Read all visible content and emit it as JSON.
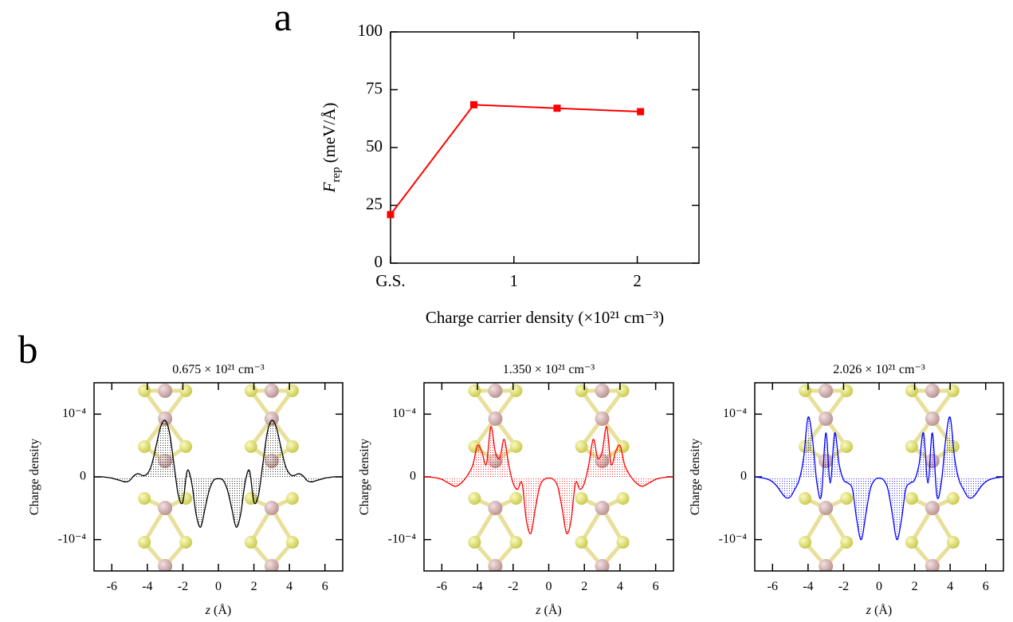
{
  "chart_data": [
    {
      "type": "line",
      "label": "a",
      "x": [
        0,
        0.675,
        1.35,
        2.026
      ],
      "values": [
        21,
        68.5,
        67,
        65.5
      ],
      "color": "#ff0000",
      "xlim": [
        0,
        2.5
      ],
      "xticks": [
        {
          "value": 0,
          "label": "G.S."
        },
        1,
        2
      ],
      "ylim": [
        0,
        100
      ],
      "yticks": [
        0,
        25,
        50,
        75,
        100
      ],
      "y_label": [
        "F",
        "rep",
        "(meV/Å)"
      ],
      "x_label": "Charge carrier density (×10²¹ cm⁻³)"
    },
    {
      "type": "area",
      "label": "b",
      "title": "0.675 × 10²¹ cm⁻³",
      "color": "#000000",
      "x": [
        -7,
        -6.75,
        -6.5,
        -6.25,
        -6,
        -5.75,
        -5.5,
        -5.25,
        -5,
        -4.75,
        -4.5,
        -4.25,
        -4,
        -3.75,
        -3.5,
        -3.25,
        -3,
        -2.75,
        -2.5,
        -2.25,
        -2,
        -1.75,
        -1.5,
        -1.25,
        -1,
        -0.75,
        -0.5,
        -0.25,
        0,
        0.25,
        0.5,
        0.75,
        1,
        1.25,
        1.5,
        1.75,
        2,
        2.25,
        2.5,
        2.75,
        3,
        3.25,
        3.5,
        3.75,
        4,
        4.25,
        4.5,
        4.75,
        5,
        5.25,
        5.5,
        5.75,
        6,
        6.25,
        6.5,
        6.75,
        7
      ],
      "values": [
        0,
        0,
        0,
        -1e-06,
        -2e-06,
        -4e-06,
        -6e-06,
        -8e-06,
        -6e-06,
        2e-06,
        5e-06,
        2e-06,
        5e-06,
        2e-05,
        5e-05,
        8e-05,
        9e-05,
        7e-05,
        2e-05,
        -3e-05,
        -4e-05,
        1e-05,
        -1e-05,
        -6e-05,
        -8e-05,
        -5e-05,
        -2e-05,
        -5e-06,
        -3e-06,
        -5e-06,
        -2e-05,
        -5e-05,
        -8e-05,
        -6e-05,
        -1e-05,
        1e-05,
        -4e-05,
        -3e-05,
        2e-05,
        7e-05,
        9e-05,
        8e-05,
        5e-05,
        2e-05,
        5e-06,
        2e-06,
        5e-06,
        2e-06,
        -6e-06,
        -8e-06,
        -6e-06,
        -4e-06,
        -2e-06,
        -1e-06,
        0,
        0,
        0
      ],
      "xlim": [
        -7,
        7
      ],
      "xticks": [
        -6,
        -4,
        -2,
        0,
        2,
        4,
        6
      ],
      "ylim": [
        -0.00015,
        0.00015
      ],
      "yticks": [
        {
          "value": -0.0001,
          "label": "-10⁻⁴"
        },
        0,
        {
          "value": 0.0001,
          "label": "10⁻⁴"
        }
      ],
      "y_label": "Charge density",
      "x_label": [
        "z",
        "(Å)"
      ]
    },
    {
      "type": "area",
      "title": "1.350 × 10²¹ cm⁻³",
      "color": "#ff0000",
      "x": [
        -7,
        -6.75,
        -6.5,
        -6.25,
        -6,
        -5.75,
        -5.5,
        -5.25,
        -5,
        -4.75,
        -4.5,
        -4.25,
        -4,
        -3.75,
        -3.5,
        -3.25,
        -3,
        -2.75,
        -2.5,
        -2.25,
        -2,
        -1.75,
        -1.5,
        -1.25,
        -1,
        -0.75,
        -0.5,
        -0.25,
        0,
        0.25,
        0.5,
        0.75,
        1,
        1.25,
        1.5,
        1.75,
        2,
        2.25,
        2.5,
        2.75,
        3,
        3.25,
        3.5,
        3.75,
        4,
        4.25,
        4.5,
        4.75,
        5,
        5.25,
        5.5,
        5.75,
        6,
        6.25,
        6.5,
        6.75,
        7
      ],
      "values": [
        0,
        0,
        -1e-06,
        -2e-06,
        -4e-06,
        -8e-06,
        -1.2e-05,
        -1.5e-05,
        -1.2e-05,
        -5e-06,
        5e-06,
        2e-05,
        5e-05,
        4e-05,
        2e-05,
        8e-05,
        4e-05,
        3e-05,
        6e-05,
        2e-05,
        -1e-05,
        -2e-05,
        -1e-05,
        -7e-05,
        -9e-05,
        -5e-05,
        -1.5e-05,
        -4e-06,
        -2e-06,
        -4e-06,
        -1.5e-05,
        -5e-05,
        -9e-05,
        -7e-05,
        -1e-05,
        -2e-05,
        -1e-05,
        2e-05,
        6e-05,
        3e-05,
        4e-05,
        8e-05,
        2e-05,
        4e-05,
        5e-05,
        2e-05,
        5e-06,
        -5e-06,
        -1.2e-05,
        -1.5e-05,
        -1.2e-05,
        -8e-06,
        -4e-06,
        -2e-06,
        -1e-06,
        0,
        0
      ],
      "xlim": [
        -7,
        7
      ],
      "xticks": [
        -6,
        -4,
        -2,
        0,
        2,
        4,
        6
      ],
      "ylim": [
        -0.00015,
        0.00015
      ],
      "yticks": [
        {
          "value": -0.0001,
          "label": "-10⁻⁴"
        },
        0,
        {
          "value": 0.0001,
          "label": "10⁻⁴"
        }
      ],
      "y_label": "Charge density",
      "x_label": [
        "z",
        "(Å)"
      ]
    },
    {
      "type": "area",
      "title": "2.026 × 10²¹ cm⁻³",
      "color": "#0000ff",
      "x": [
        -7,
        -6.75,
        -6.5,
        -6.25,
        -6,
        -5.75,
        -5.5,
        -5.25,
        -5,
        -4.75,
        -4.5,
        -4.25,
        -4,
        -3.75,
        -3.5,
        -3.25,
        -3,
        -2.75,
        -2.5,
        -2.25,
        -2,
        -1.75,
        -1.5,
        -1.25,
        -1,
        -0.75,
        -0.5,
        -0.25,
        0,
        0.25,
        0.5,
        0.75,
        1,
        1.25,
        1.5,
        1.75,
        2,
        2.25,
        2.5,
        2.75,
        3,
        3.25,
        3.5,
        3.75,
        4,
        4.25,
        4.5,
        4.75,
        5,
        5.25,
        5.5,
        5.75,
        6,
        6.25,
        6.5,
        6.75,
        7
      ],
      "values": [
        0,
        -1e-06,
        -2e-06,
        -4e-06,
        -8e-06,
        -1.5e-05,
        -2.5e-05,
        -3.3e-05,
        -3.2e-05,
        -2e-05,
        -5e-06,
        3e-05,
        9.5e-05,
        6e-05,
        -1e-05,
        -3e-05,
        7e-05,
        -1e-05,
        7e-05,
        2e-05,
        -5e-06,
        -1e-05,
        -2e-05,
        -7e-05,
        -0.0001,
        -6e-05,
        -2e-05,
        -5e-06,
        -2e-06,
        -5e-06,
        -2e-05,
        -6e-05,
        -0.0001,
        -7e-05,
        -2e-05,
        -1e-05,
        -5e-06,
        2e-05,
        7e-05,
        -1e-05,
        7e-05,
        -3e-05,
        -1e-05,
        6e-05,
        9.5e-05,
        3e-05,
        -5e-06,
        -2e-05,
        -3.2e-05,
        -3.3e-05,
        -2.5e-05,
        -1.5e-05,
        -8e-06,
        -4e-06,
        -2e-06,
        -1e-06,
        0
      ],
      "xlim": [
        -7,
        7
      ],
      "xticks": [
        -6,
        -4,
        -2,
        0,
        2,
        4,
        6
      ],
      "ylim": [
        -0.00015,
        0.00015
      ],
      "yticks": [
        {
          "value": -0.0001,
          "label": "-10⁻⁴"
        },
        0,
        {
          "value": 0.0001,
          "label": "10⁻⁴"
        }
      ],
      "y_label": "Charge density",
      "x_label": [
        "z",
        "(Å)"
      ]
    }
  ]
}
